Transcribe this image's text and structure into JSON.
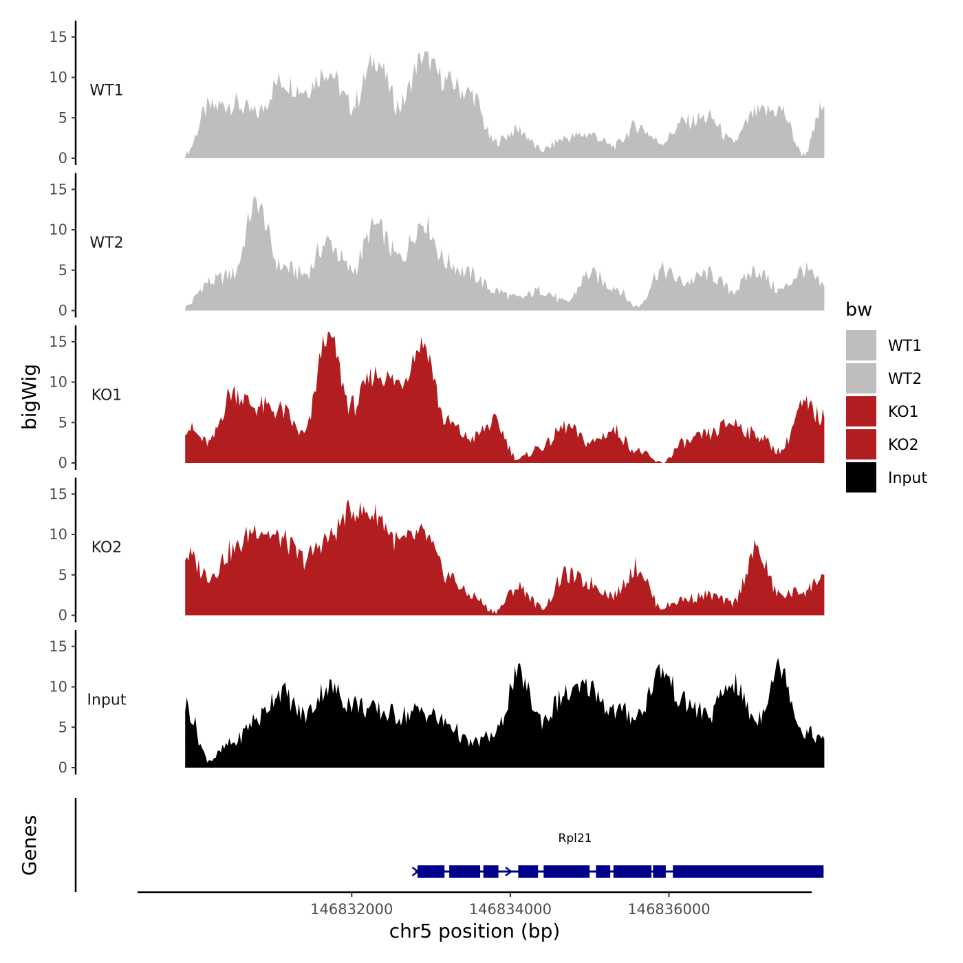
{
  "chart_data": {
    "type": "area",
    "title": "",
    "ylabel": "bigWig",
    "xlabel": "chr5 position (bp)",
    "ylim": [
      0,
      16
    ],
    "yticks": [
      0,
      5,
      10,
      15
    ],
    "xlim": [
      146829300,
      146837800
    ],
    "x_ticks": [
      146832000,
      146834000,
      146836000
    ],
    "x_tick_labels": [
      "146832000",
      "146834000",
      "146836000"
    ],
    "x": [
      146829900,
      146830200,
      146830500,
      146830800,
      146831100,
      146831400,
      146831700,
      146832000,
      146832300,
      146832600,
      146832900,
      146833200,
      146833500,
      146833800,
      146834100,
      146834400,
      146834700,
      146835000,
      146835300,
      146835600,
      146835900,
      146836200,
      146836500,
      146836800,
      146837100,
      146837400,
      146837700,
      146837960
    ],
    "series": [
      {
        "name": "WT1",
        "color": "#bebebe",
        "values": [
          0.5,
          6.2,
          6.8,
          5.5,
          9.5,
          8.5,
          10.8,
          6.5,
          12.2,
          6.5,
          12.5,
          9.5,
          8.0,
          2.0,
          3.5,
          1.0,
          2.5,
          3.0,
          1.5,
          4.0,
          2.0,
          4.5,
          5.0,
          2.0,
          5.5,
          6.0,
          0.5,
          6.5
        ]
      },
      {
        "name": "WT2",
        "color": "#bebebe",
        "values": [
          0.5,
          3.5,
          4.5,
          13.3,
          5.5,
          4.5,
          8.5,
          5.0,
          10.5,
          6.5,
          11.0,
          6.0,
          4.5,
          2.5,
          1.5,
          2.5,
          1.0,
          4.5,
          3.0,
          0.5,
          5.0,
          3.5,
          4.5,
          2.5,
          5.0,
          2.5,
          5.0,
          3.0
        ]
      },
      {
        "name": "KO1",
        "color": "#b21e20",
        "values": [
          4.5,
          2.5,
          8.8,
          7.0,
          6.5,
          3.5,
          16.0,
          7.0,
          11.0,
          10.0,
          14.8,
          5.0,
          3.0,
          5.0,
          0.5,
          2.0,
          4.5,
          2.5,
          4.0,
          1.5,
          0.0,
          2.5,
          3.5,
          5.0,
          3.5,
          1.5,
          7.0,
          5.5
        ]
      },
      {
        "name": "KO2",
        "color": "#b21e20",
        "values": [
          7.5,
          5.0,
          8.0,
          10.8,
          9.5,
          7.0,
          9.5,
          13.0,
          12.5,
          9.0,
          10.0,
          5.0,
          2.5,
          0.5,
          3.5,
          1.0,
          5.0,
          4.0,
          2.5,
          6.0,
          1.0,
          2.0,
          2.5,
          1.5,
          8.0,
          2.5,
          3.0,
          5.0
        ]
      },
      {
        "name": "Input",
        "color": "#000000",
        "values": [
          7.8,
          1.0,
          3.0,
          6.0,
          9.5,
          6.5,
          10.0,
          8.0,
          7.0,
          6.5,
          7.0,
          5.5,
          3.0,
          4.0,
          11.5,
          6.0,
          9.0,
          10.0,
          7.0,
          6.5,
          12.0,
          8.0,
          6.5,
          10.5,
          6.0,
          12.5,
          4.5,
          3.5
        ]
      }
    ],
    "legend": {
      "title": "bw",
      "entries": [
        "WT1",
        "WT2",
        "KO1",
        "KO2",
        "Input"
      ],
      "position": "right"
    },
    "gene_track": {
      "ylabel": "Genes",
      "gene_name": "Rpl21",
      "color": "#00008b",
      "strand": "+",
      "start": 146832800,
      "end": 146837950,
      "exons": [
        [
          146832830,
          146833170
        ],
        [
          146833230,
          146833620
        ],
        [
          146833660,
          146833850
        ],
        [
          146834100,
          146834350
        ],
        [
          146834420,
          146835000
        ],
        [
          146835080,
          146835260
        ],
        [
          146835300,
          146835780
        ],
        [
          146835800,
          146835960
        ],
        [
          146836050,
          146837950
        ]
      ]
    }
  }
}
